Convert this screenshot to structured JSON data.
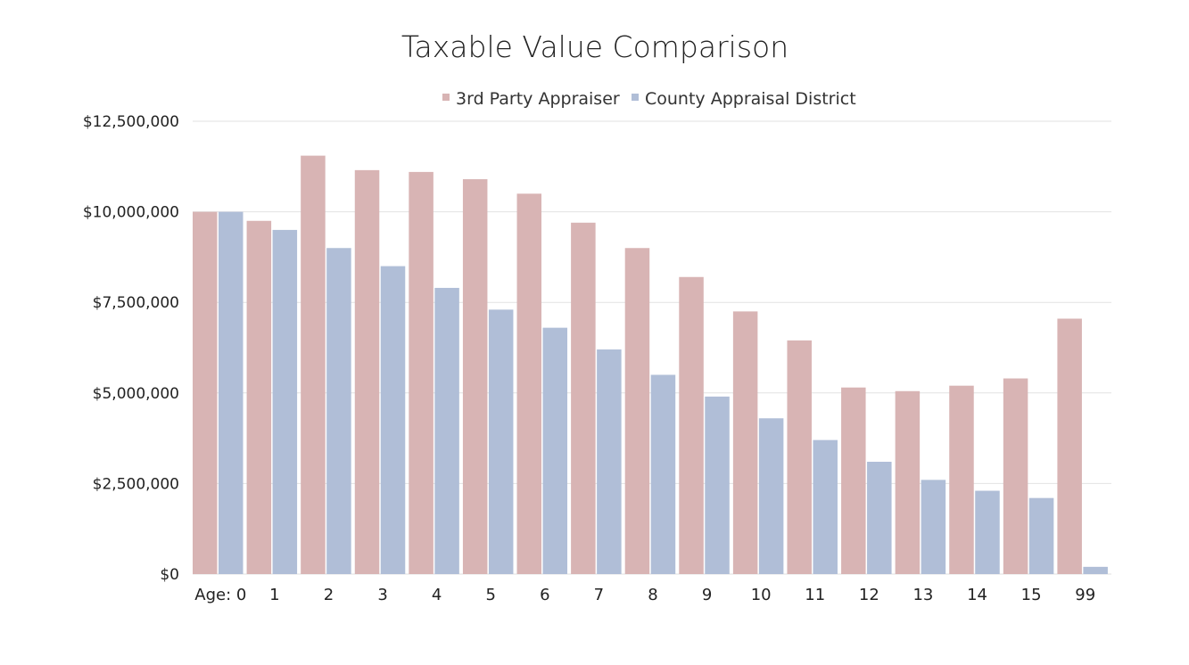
{
  "chart_data": {
    "type": "bar",
    "title": "Taxable Value Comparison",
    "xlabel": "",
    "ylabel": "",
    "categories": [
      "Age: 0",
      "1",
      "2",
      "3",
      "4",
      "5",
      "6",
      "7",
      "8",
      "9",
      "10",
      "11",
      "12",
      "13",
      "14",
      "15",
      "99"
    ],
    "series": [
      {
        "name": "3rd Party Appraiser",
        "color": "#d8b4b4",
        "values": [
          10000000,
          9750000,
          11550000,
          11150000,
          11100000,
          10900000,
          10500000,
          9700000,
          9000000,
          8200000,
          7250000,
          6450000,
          5150000,
          5050000,
          5200000,
          5400000,
          7050000
        ]
      },
      {
        "name": "County Appraisal District",
        "color": "#b0bed7",
        "values": [
          10000000,
          9500000,
          9000000,
          8500000,
          7900000,
          7300000,
          6800000,
          6200000,
          5500000,
          4900000,
          4300000,
          3700000,
          3100000,
          2600000,
          2300000,
          2100000,
          200000
        ]
      }
    ],
    "ylim": [
      0,
      12500000
    ],
    "yticks": [
      0,
      2500000,
      5000000,
      7500000,
      10000000,
      12500000
    ],
    "ytick_labels": [
      "$0",
      "$2,500,000",
      "$5,000,000",
      "$7,500,000",
      "$10,000,000",
      "$12,500,000"
    ],
    "grid": true,
    "legend_position": "top"
  }
}
